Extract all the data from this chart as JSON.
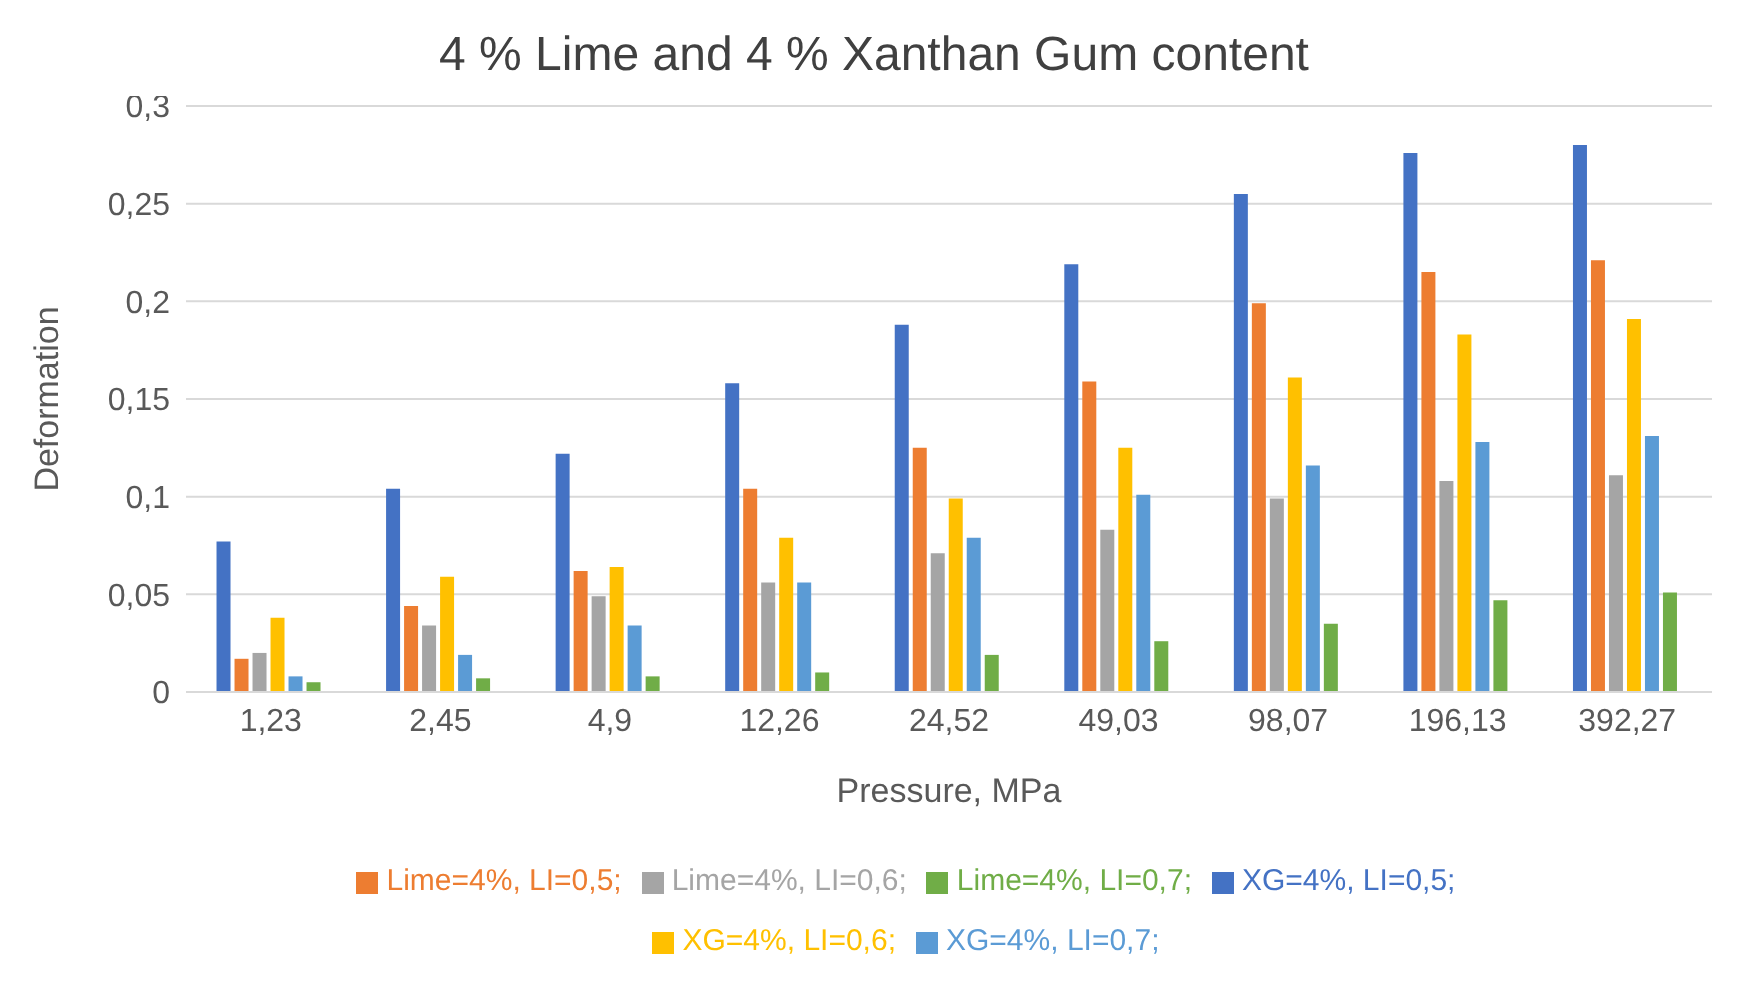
{
  "chart_data": {
    "type": "bar",
    "title": "4 % Lime and 4 % Xanthan Gum content",
    "xlabel": "Pressure, MPa",
    "ylabel": "Deformation",
    "categories": [
      "1,23",
      "2,45",
      "4,9",
      "12,26",
      "24,52",
      "49,03",
      "98,07",
      "196,13",
      "392,27"
    ],
    "series": [
      {
        "name": "XG=4%, LI=0,5;",
        "color": "#4472c4",
        "values": [
          0.077,
          0.104,
          0.122,
          0.158,
          0.188,
          0.219,
          0.255,
          0.276,
          0.28
        ]
      },
      {
        "name": "Lime=4%, LI=0,5;",
        "color": "#ed7d31",
        "values": [
          0.017,
          0.044,
          0.062,
          0.104,
          0.125,
          0.159,
          0.199,
          0.215,
          0.221
        ]
      },
      {
        "name": "Lime=4%, LI=0,6;",
        "color": "#a5a5a5",
        "values": [
          0.02,
          0.034,
          0.049,
          0.056,
          0.071,
          0.083,
          0.099,
          0.108,
          0.111
        ]
      },
      {
        "name": "XG=4%, LI=0,6;",
        "color": "#ffc000",
        "values": [
          0.038,
          0.059,
          0.064,
          0.079,
          0.099,
          0.125,
          0.161,
          0.183,
          0.191
        ]
      },
      {
        "name": "XG=4%, LI=0,7;",
        "color": "#5b9bd5",
        "values": [
          0.008,
          0.019,
          0.034,
          0.056,
          0.079,
          0.101,
          0.116,
          0.128,
          0.131
        ]
      },
      {
        "name": "Lime=4%, LI=0,7;",
        "color": "#70ad47",
        "values": [
          0.005,
          0.007,
          0.008,
          0.01,
          0.019,
          0.026,
          0.035,
          0.047,
          0.051
        ]
      }
    ],
    "ylim": [
      0,
      0.3
    ],
    "yticks": [
      0,
      {
        "value": 0.05,
        "label": "0,05"
      },
      {
        "value": 0.1,
        "label": "0,1"
      },
      {
        "value": 0.15,
        "label": "0,15"
      },
      {
        "value": 0.2,
        "label": "0,2"
      },
      {
        "value": 0.25,
        "label": "0,25"
      },
      {
        "value": 0.3,
        "label": "0,3"
      }
    ],
    "grid": "y",
    "legend": "bottom"
  }
}
